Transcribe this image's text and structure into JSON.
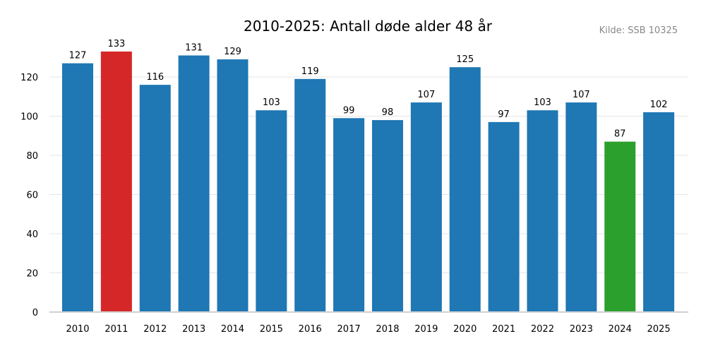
{
  "chart_data": {
    "type": "bar",
    "title": "2010-2025: Antall døde alder 48 år",
    "source": "Kilde: SSB 10325",
    "categories": [
      "2010",
      "2011",
      "2012",
      "2013",
      "2014",
      "2015",
      "2016",
      "2017",
      "2018",
      "2019",
      "2020",
      "2021",
      "2022",
      "2023",
      "2024",
      "2025"
    ],
    "values": [
      127,
      133,
      116,
      131,
      129,
      103,
      119,
      99,
      98,
      107,
      125,
      97,
      103,
      107,
      87,
      102
    ],
    "bar_colors": [
      "#1f77b4",
      "#d62728",
      "#1f77b4",
      "#1f77b4",
      "#1f77b4",
      "#1f77b4",
      "#1f77b4",
      "#1f77b4",
      "#1f77b4",
      "#1f77b4",
      "#1f77b4",
      "#1f77b4",
      "#1f77b4",
      "#1f77b4",
      "#2ca02c",
      "#1f77b4"
    ],
    "xlabel": "",
    "ylabel": "",
    "ylim": [
      0,
      140
    ],
    "yticks": [
      0,
      20,
      40,
      60,
      80,
      100,
      120
    ],
    "grid": true,
    "legend": "none"
  }
}
